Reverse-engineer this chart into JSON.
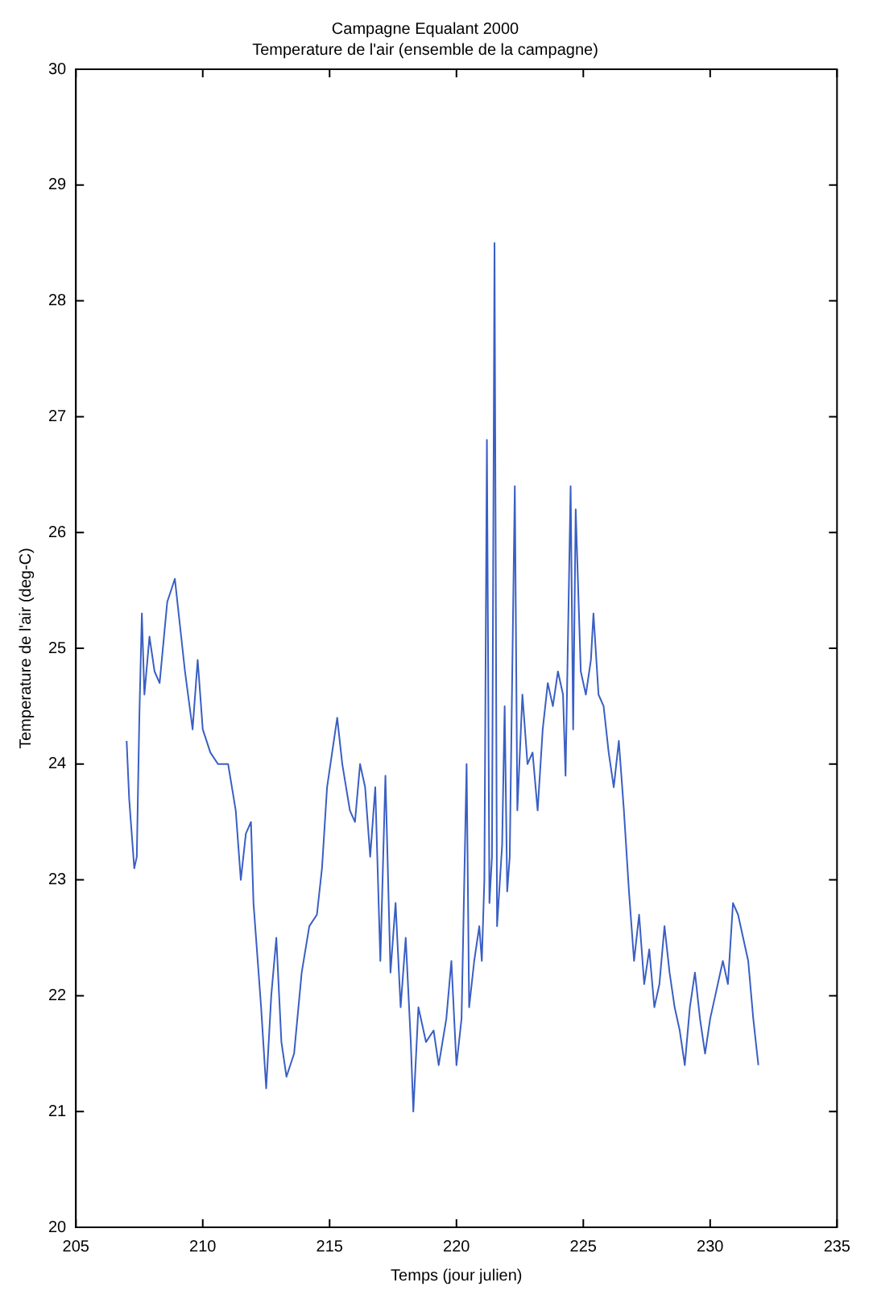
{
  "chart_data": {
    "type": "line",
    "title": "Campagne Equalant 2000",
    "subtitle": "Temperature de l'air (ensemble de la campagne)",
    "xlabel": "Temps (jour julien)",
    "ylabel": "Temperature de l'air (deg-C)",
    "xlim": [
      205,
      235
    ],
    "xticks": [
      205,
      210,
      215,
      220,
      225,
      230,
      235
    ],
    "ylim": [
      20,
      30
    ],
    "yticks": [
      20,
      21,
      22,
      23,
      24,
      25,
      26,
      27,
      28,
      29,
      30
    ],
    "grid": false,
    "legend": false,
    "marker": "none",
    "line_style": "solid",
    "series": [
      {
        "color": "#3a5fc4",
        "x": [
          207.0,
          207.1,
          207.3,
          207.4,
          207.5,
          207.6,
          207.7,
          207.9,
          208.1,
          208.3,
          208.6,
          208.9,
          209.1,
          209.3,
          209.6,
          209.8,
          210.0,
          210.3,
          210.6,
          211.0,
          211.3,
          211.5,
          211.7,
          211.9,
          212.0,
          212.3,
          212.5,
          212.7,
          212.9,
          213.1,
          213.3,
          213.6,
          213.9,
          214.2,
          214.5,
          214.7,
          214.9,
          215.1,
          215.3,
          215.5,
          215.8,
          216.0,
          216.2,
          216.4,
          216.6,
          216.8,
          217.0,
          217.2,
          217.4,
          217.6,
          217.8,
          218.0,
          218.2,
          218.3,
          218.5,
          218.8,
          219.1,
          219.3,
          219.6,
          219.8,
          220.0,
          220.2,
          220.4,
          220.5,
          220.7,
          220.9,
          221.0,
          221.1,
          221.2,
          221.3,
          221.4,
          221.5,
          221.6,
          221.8,
          221.9,
          222.0,
          222.1,
          222.3,
          222.4,
          222.6,
          222.8,
          223.0,
          223.2,
          223.4,
          223.6,
          223.8,
          224.0,
          224.2,
          224.3,
          224.5,
          224.6,
          224.7,
          224.9,
          225.1,
          225.3,
          225.4,
          225.6,
          225.8,
          226.0,
          226.2,
          226.4,
          226.6,
          226.8,
          227.0,
          227.2,
          227.4,
          227.6,
          227.8,
          228.0,
          228.2,
          228.4,
          228.6,
          228.8,
          229.0,
          229.2,
          229.4,
          229.6,
          229.8,
          230.0,
          230.2,
          230.5,
          230.7,
          230.9,
          231.1,
          231.3,
          231.5,
          231.7,
          231.9
        ],
        "values": [
          24.2,
          23.7,
          23.1,
          23.2,
          24.4,
          25.3,
          24.6,
          25.1,
          24.8,
          24.7,
          25.4,
          25.6,
          25.2,
          24.8,
          24.3,
          24.9,
          24.3,
          24.1,
          24.0,
          24.0,
          23.6,
          23.0,
          23.4,
          23.5,
          22.8,
          21.9,
          21.2,
          22.0,
          22.5,
          21.6,
          21.3,
          21.5,
          22.2,
          22.6,
          22.7,
          23.1,
          23.8,
          24.1,
          24.4,
          24.0,
          23.6,
          23.5,
          24.0,
          23.8,
          23.2,
          23.8,
          22.3,
          23.9,
          22.2,
          22.8,
          21.9,
          22.5,
          21.6,
          21.0,
          21.9,
          21.6,
          21.7,
          21.4,
          21.8,
          22.3,
          21.4,
          21.8,
          24.0,
          21.9,
          22.3,
          22.6,
          22.3,
          23.0,
          26.8,
          22.8,
          23.2,
          28.5,
          22.6,
          23.3,
          24.5,
          22.9,
          23.2,
          26.4,
          23.6,
          24.6,
          24.0,
          24.1,
          23.6,
          24.3,
          24.7,
          24.5,
          24.8,
          24.6,
          23.9,
          26.4,
          24.3,
          26.2,
          24.8,
          24.6,
          24.9,
          25.3,
          24.6,
          24.5,
          24.1,
          23.8,
          24.2,
          23.6,
          22.9,
          22.3,
          22.7,
          22.1,
          22.4,
          21.9,
          22.1,
          22.6,
          22.2,
          21.9,
          21.7,
          21.4,
          21.9,
          22.2,
          21.8,
          21.5,
          21.8,
          22.0,
          22.3,
          22.1,
          22.8,
          22.7,
          22.5,
          22.3,
          21.8,
          21.4
        ]
      }
    ]
  }
}
